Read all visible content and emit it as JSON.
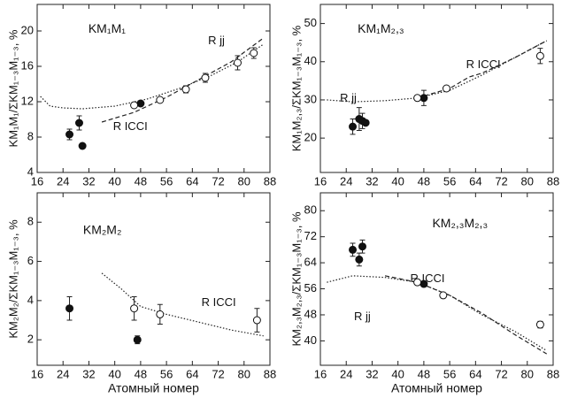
{
  "chart_data": [
    {
      "type": "scatter",
      "title": "KM₁M₁",
      "ylabel": "KM₁M₁/ΣKM₁₋₃M₁₋₃, %",
      "xlim": [
        16,
        88
      ],
      "xticks": [
        16,
        24,
        32,
        40,
        48,
        56,
        64,
        72,
        80,
        88
      ],
      "ylim": [
        4,
        23
      ],
      "yticks": [
        4,
        8,
        12,
        16,
        20
      ],
      "annotations": [
        "R jj",
        "R ICCI"
      ],
      "series": [
        {
          "kind": "line",
          "style": "dotted",
          "x": [
            17,
            20,
            24,
            30,
            40,
            50,
            60,
            70,
            78,
            86
          ],
          "values": [
            12.6,
            11.5,
            11.3,
            11.2,
            11.5,
            12.3,
            13.5,
            15.0,
            16.5,
            18.5
          ]
        },
        {
          "kind": "line",
          "style": "dashed",
          "x": [
            36,
            46,
            56,
            66,
            76,
            86
          ],
          "values": [
            9.7,
            10.8,
            12.5,
            14.5,
            16.5,
            19.2
          ]
        },
        {
          "kind": "points",
          "marker": "filled",
          "x": [
            26,
            29,
            30,
            48
          ],
          "values": [
            8.3,
            9.6,
            7.0,
            11.8
          ],
          "errors": [
            0.6,
            0.8,
            0.3,
            null
          ]
        },
        {
          "kind": "points",
          "marker": "open",
          "x": [
            46,
            54,
            62,
            68,
            78,
            83
          ],
          "values": [
            11.6,
            12.2,
            13.4,
            14.7,
            16.4,
            17.5
          ],
          "errors": [
            null,
            null,
            0.4,
            0.5,
            0.8,
            0.6
          ]
        }
      ]
    },
    {
      "type": "scatter",
      "title": "KM₁M₂,₃",
      "ylabel": "KM₁M₂,₃/ΣKM₁₋₃M₁₋₃, %",
      "xlim": [
        16,
        88
      ],
      "xticks": [
        16,
        24,
        32,
        40,
        48,
        56,
        64,
        72,
        80,
        88
      ],
      "ylim": [
        11,
        55
      ],
      "yticks": [
        20,
        30,
        40,
        50
      ],
      "annotations": [
        "R jj",
        "R ICCI"
      ],
      "series": [
        {
          "kind": "line",
          "style": "dotted",
          "x": [
            18,
            26,
            36,
            46,
            56,
            66,
            76,
            86
          ],
          "values": [
            30,
            29.5,
            29.8,
            30.5,
            32.5,
            36.5,
            41,
            45.5
          ]
        },
        {
          "kind": "line",
          "style": "dashed",
          "x": [
            46,
            56,
            62,
            66,
            76,
            86
          ],
          "values": [
            30.5,
            33,
            36,
            37,
            41,
            45.5
          ]
        },
        {
          "kind": "points",
          "marker": "filled",
          "x": [
            26,
            28,
            29,
            30,
            48
          ],
          "values": [
            23,
            25,
            24.5,
            24,
            30.5
          ],
          "errors": [
            2,
            3,
            2,
            null,
            2
          ]
        },
        {
          "kind": "points",
          "marker": "open",
          "x": [
            46,
            55,
            84
          ],
          "values": [
            30.5,
            33,
            41.5
          ],
          "errors": [
            null,
            null,
            2
          ]
        }
      ]
    },
    {
      "type": "scatter",
      "title": "KM₂M₂",
      "ylabel": "KM₂M₂/ΣKM₁₋₃M₁₋₃, %",
      "xlabel": "Атомный номер",
      "xlim": [
        16,
        88
      ],
      "xticks": [
        16,
        24,
        32,
        40,
        48,
        56,
        64,
        72,
        80,
        88
      ],
      "ylim": [
        0.7,
        9.5
      ],
      "yticks": [
        2,
        4,
        6,
        8
      ],
      "annotations": [
        "R ICCI"
      ],
      "series": [
        {
          "kind": "line",
          "style": "dotted",
          "x": [
            36,
            42,
            48,
            56,
            66,
            76,
            86
          ],
          "values": [
            5.4,
            4.6,
            3.7,
            3.3,
            2.9,
            2.5,
            2.2
          ]
        },
        {
          "kind": "points",
          "marker": "filled",
          "x": [
            26,
            47
          ],
          "values": [
            3.6,
            2.0
          ],
          "errors": [
            0.6,
            0.2
          ]
        },
        {
          "kind": "points",
          "marker": "open",
          "x": [
            46,
            54,
            84
          ],
          "values": [
            3.6,
            3.3,
            3.0
          ],
          "errors": [
            0.6,
            0.5,
            0.6
          ]
        }
      ]
    },
    {
      "type": "scatter",
      "title": "KM₂,₃M₂,₃",
      "ylabel": "KM₂,₃M₂,₃/ΣKM₁₋₃M₁₋₃, %",
      "xlabel": "Атомный номер",
      "xlim": [
        16,
        88
      ],
      "xticks": [
        16,
        24,
        32,
        40,
        48,
        56,
        64,
        72,
        80,
        88
      ],
      "ylim": [
        32.5,
        85.5
      ],
      "yticks": [
        40,
        48,
        56,
        64,
        72,
        80
      ],
      "annotations": [
        "R ICCI",
        "R jj"
      ],
      "series": [
        {
          "kind": "line",
          "style": "dotted",
          "x": [
            18,
            26,
            36,
            46,
            56,
            66,
            76,
            86
          ],
          "values": [
            58,
            60,
            59.5,
            58,
            54,
            48,
            43,
            37
          ]
        },
        {
          "kind": "line",
          "style": "dashed",
          "x": [
            36,
            46,
            56,
            66,
            76,
            86
          ],
          "values": [
            60,
            58,
            54,
            48.5,
            42,
            36
          ]
        },
        {
          "kind": "points",
          "marker": "filled",
          "x": [
            26,
            28,
            29,
            48
          ],
          "values": [
            68,
            65,
            69,
            57.5
          ],
          "errors": [
            2,
            2,
            2,
            null
          ]
        },
        {
          "kind": "points",
          "marker": "open",
          "x": [
            46,
            54,
            84
          ],
          "values": [
            58,
            54,
            45
          ],
          "errors": [
            null,
            null,
            1
          ]
        }
      ]
    }
  ]
}
